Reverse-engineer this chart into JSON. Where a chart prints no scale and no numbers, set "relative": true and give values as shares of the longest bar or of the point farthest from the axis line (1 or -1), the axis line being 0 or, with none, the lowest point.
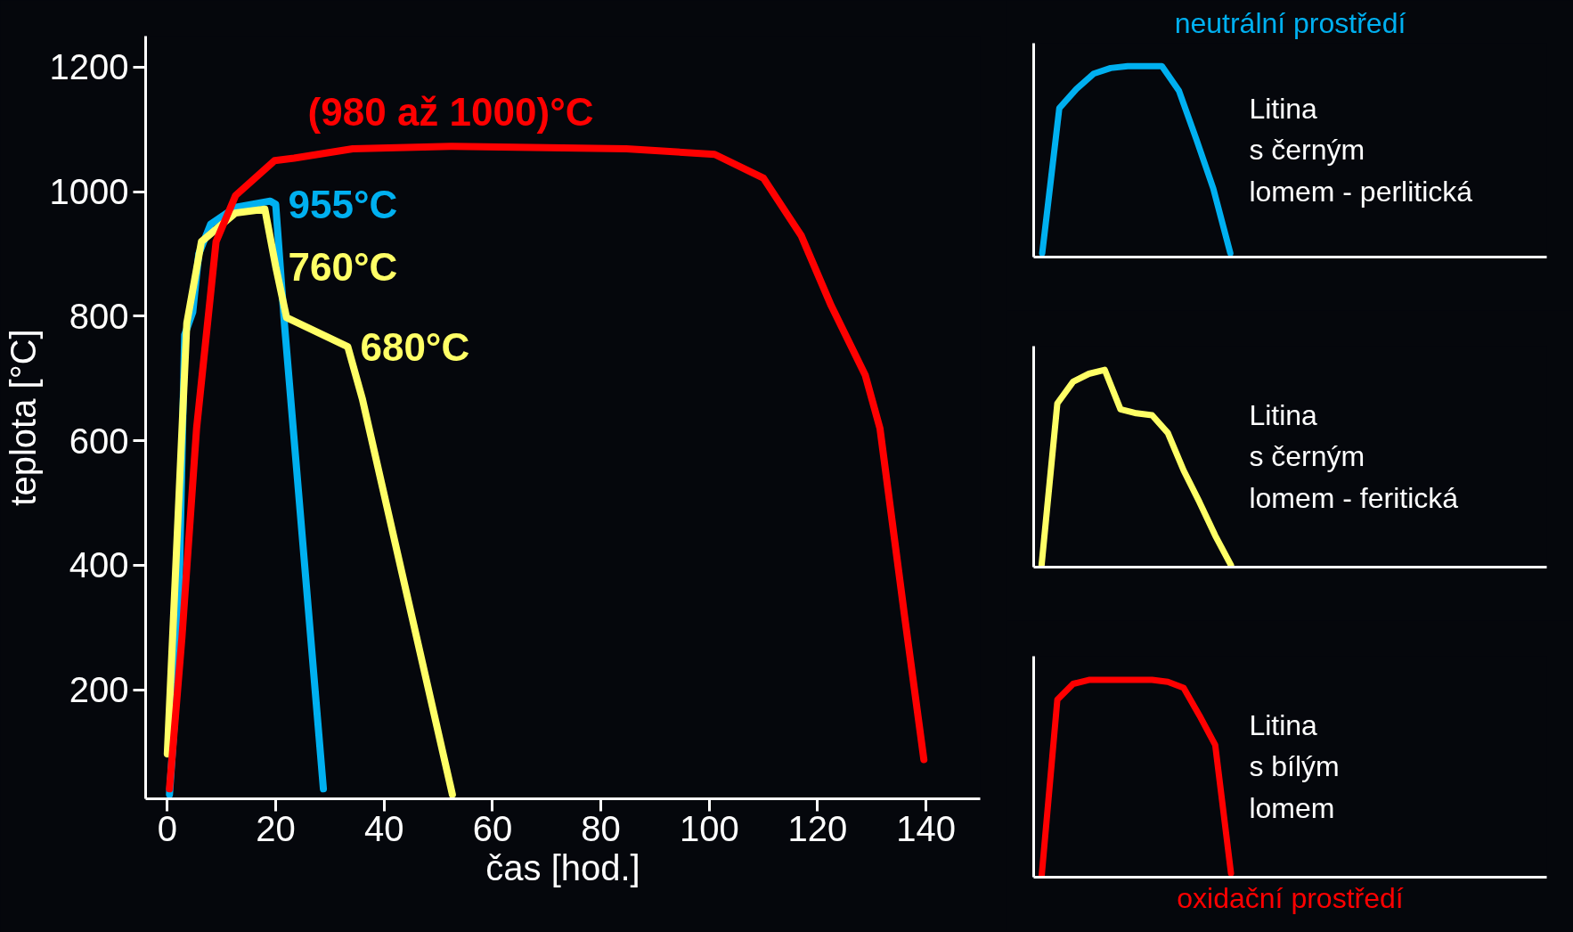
{
  "chart_data": [
    {
      "type": "line",
      "xlabel": "čas [hod.]",
      "ylabel": "teplota [°C]",
      "xlim": [
        -4,
        150
      ],
      "ylim": [
        25,
        1250
      ],
      "xticks": [
        0,
        20,
        40,
        60,
        80,
        100,
        120,
        140
      ],
      "yticks": [
        200,
        400,
        600,
        800,
        1000,
        1200
      ],
      "series": [
        {
          "color": "#00b0f0",
          "x": [
            0.4,
            1.8,
            3.2,
            4.7,
            5.8,
            8,
            12.6,
            19,
            20,
            21.6,
            28.8
          ],
          "values": [
            32,
            209,
            770,
            807,
            900,
            948,
            975,
            985,
            980,
            789,
            41
          ]
        },
        {
          "color": "#ffff66",
          "x": [
            0,
            3.6,
            6.3,
            12.6,
            18,
            20,
            22,
            33.3,
            36,
            52.6
          ],
          "values": [
            97,
            789,
            920,
            966,
            972,
            880,
            798,
            751,
            667,
            32
          ]
        },
        {
          "color": "#ff0000",
          "x": [
            0.4,
            2.7,
            5.4,
            9,
            12.6,
            19.8,
            23.4,
            34.2,
            52.3,
            84.7,
            101,
            110,
            117,
            122.5,
            128.8,
            131.5,
            136,
            139.6
          ],
          "values": [
            41,
            284,
            620,
            920,
            994,
            1050,
            1054,
            1069,
            1073,
            1069,
            1060,
            1022,
            929,
            817,
            705,
            620,
            321,
            88
          ]
        }
      ],
      "annotations": [
        {
          "text": "(980 až 1000)°C",
          "x": 52.3,
          "y": 1073
        },
        {
          "text": "955°C",
          "x": 20,
          "y": 980
        },
        {
          "text": "760°C",
          "x": 20,
          "y": 880
        },
        {
          "text": "680°C",
          "x": 33.3,
          "y": 751
        }
      ]
    },
    {
      "type": "line",
      "relative": true,
      "title": "neutrální prostředí",
      "categories": [
        null,
        null,
        null,
        null,
        null,
        null,
        null,
        null,
        null,
        null,
        null,
        null
      ],
      "series": [
        {
          "color": "#00b0f0",
          "values": [
            0.02,
            0.78,
            0.88,
            0.96,
            0.99,
            1,
            1,
            1,
            0.87,
            0.62,
            0.36,
            0.02
          ]
        }
      ],
      "annotations": [
        "Litina\ns černým\nlomem - perlitická"
      ]
    },
    {
      "type": "line",
      "relative": true,
      "categories": [
        null,
        null,
        null,
        null,
        null,
        null,
        null,
        null,
        null,
        null,
        null,
        null,
        null
      ],
      "series": [
        {
          "color": "#ffff66",
          "values": [
            0.01,
            0.83,
            0.94,
            0.98,
            1,
            0.8,
            0.78,
            0.77,
            0.68,
            0.49,
            0.33,
            0.16,
            0.01
          ]
        }
      ],
      "annotations": [
        "Litina\ns černým\nlomem - feritická"
      ]
    },
    {
      "type": "line",
      "relative": true,
      "xlabel": "oxidační prostředí",
      "categories": [
        null,
        null,
        null,
        null,
        null,
        null,
        null,
        null,
        null,
        null,
        null,
        null,
        null
      ],
      "series": [
        {
          "color": "#ff0000",
          "values": [
            0,
            0.9,
            0.98,
            1,
            1,
            1,
            1,
            1,
            0.99,
            0.96,
            0.82,
            0.67,
            0.02
          ]
        }
      ],
      "annotations": [
        "Litina\ns bílým\nlomem"
      ]
    }
  ]
}
